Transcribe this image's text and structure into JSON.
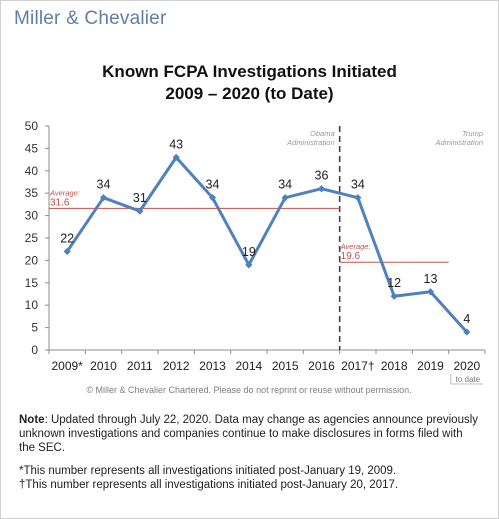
{
  "brand": {
    "name": "Miller & Chevalier"
  },
  "chart_data": {
    "type": "line",
    "title": [
      "Known FCPA Investigations Initiated",
      "2009 – 2020 (to Date)"
    ],
    "categories": [
      "2009*",
      "2010",
      "2011",
      "2012",
      "2013",
      "2014",
      "2015",
      "2016",
      "2017†",
      "2018",
      "2019",
      "2020"
    ],
    "category_note": {
      "category": "2020",
      "text": "to date"
    },
    "series": [
      {
        "values": [
          22,
          34,
          31,
          43,
          34,
          19,
          34,
          36,
          34,
          12,
          13,
          4
        ],
        "color": "#4f81bd"
      }
    ],
    "ylim": [
      0,
      50
    ],
    "yticks": [
      0,
      5,
      10,
      15,
      20,
      25,
      30,
      35,
      40,
      45,
      50
    ],
    "grid": false,
    "legend": "none",
    "divider": {
      "after_category": "2016",
      "left_label": [
        "Obama",
        "Administration"
      ],
      "right_label": [
        "Trump",
        "Administration"
      ]
    },
    "averages": [
      {
        "label": "Average:",
        "value": 31.6,
        "display": "31.6",
        "from": "2009*",
        "to": "2016",
        "color": "#c0504d"
      },
      {
        "label": "Average:",
        "value": 19.6,
        "display": "19.6",
        "from": "2017†",
        "to": "2019",
        "color": "#c0504d"
      }
    ]
  },
  "copyright": "© Miller & Chevalier Chartered. Please do not reprint or reuse without permission.",
  "note": {
    "label": "Note",
    "text": ": Updated through July 22, 2020. Data may change as agencies announce previously unknown investigations and companies continue to make disclosures in forms filed with the SEC."
  },
  "footnotes": [
    "*This number represents all investigations initiated post-January 19, 2009.",
    "†This number represents all investigations initiated post-January 20, 2017."
  ]
}
